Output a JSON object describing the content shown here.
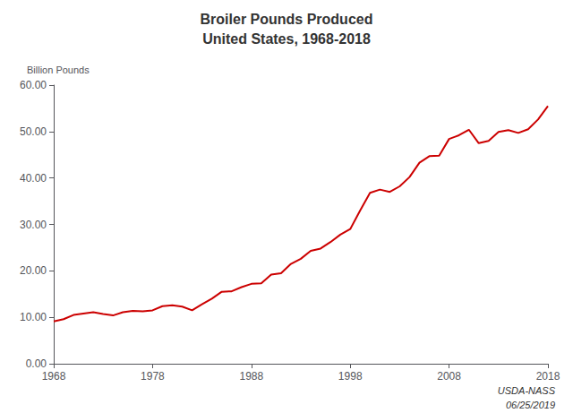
{
  "chart_data": {
    "type": "line",
    "title": "Broiler Pounds Produced",
    "subtitle": "United States, 1968-2018",
    "y_label": "Billion Pounds",
    "annotations": [
      "USDA-NASS",
      "06/25/2019"
    ],
    "color": "#cc0000",
    "grid": false,
    "x": [
      1968,
      1969,
      1970,
      1971,
      1972,
      1973,
      1974,
      1975,
      1976,
      1977,
      1978,
      1979,
      1980,
      1981,
      1982,
      1983,
      1984,
      1985,
      1986,
      1987,
      1988,
      1989,
      1990,
      1991,
      1992,
      1993,
      1994,
      1995,
      1996,
      1997,
      1998,
      1999,
      2000,
      2001,
      2002,
      2003,
      2004,
      2005,
      2006,
      2007,
      2008,
      2009,
      2010,
      2011,
      2012,
      2013,
      2014,
      2015,
      2016,
      2017,
      2018
    ],
    "values": [
      9.1,
      9.6,
      10.5,
      10.8,
      11.1,
      10.7,
      10.4,
      11.1,
      11.4,
      11.3,
      11.5,
      12.4,
      12.6,
      12.3,
      11.5,
      12.8,
      14.0,
      15.5,
      15.6,
      16.5,
      17.2,
      17.3,
      19.2,
      19.5,
      21.5,
      22.6,
      24.3,
      24.8,
      26.2,
      27.8,
      29.0,
      33.0,
      36.8,
      37.5,
      37.0,
      38.2,
      40.2,
      43.3,
      44.7,
      44.8,
      48.4,
      49.2,
      50.4,
      47.5,
      48.0,
      49.9,
      50.3,
      49.7,
      50.5,
      52.6,
      55.5
    ],
    "xlim": [
      1968,
      2018
    ],
    "xticks": [
      1968,
      1978,
      1988,
      1998,
      2008,
      2018
    ],
    "ylim": [
      0,
      60
    ],
    "yticks": [
      {
        "value": 0,
        "label": "0.00"
      },
      {
        "value": 10,
        "label": "10.00"
      },
      {
        "value": 20,
        "label": "20.00"
      },
      {
        "value": 30,
        "label": "30.00"
      },
      {
        "value": 40,
        "label": "40.00"
      },
      {
        "value": 50,
        "label": "50.00"
      },
      {
        "value": 60,
        "label": "60.00"
      }
    ]
  }
}
